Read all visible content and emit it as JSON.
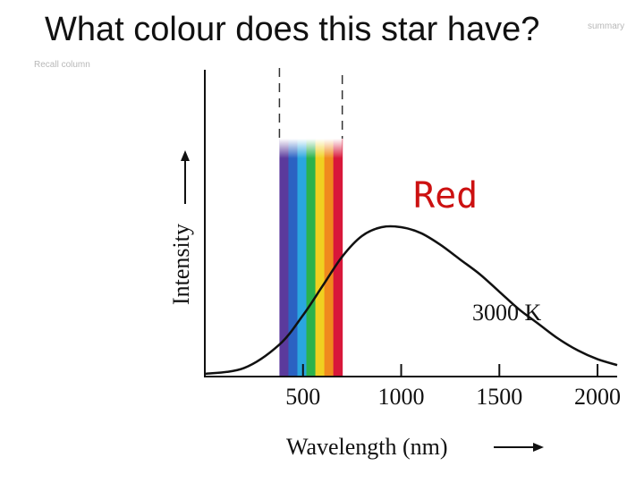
{
  "slide": {
    "title": "What colour does this star have?",
    "summary_link": "summary",
    "recall_link": "Recall column",
    "answer": "Red"
  },
  "colors": {
    "answer": "#cc1111",
    "curve": "#111111",
    "visible_band": [
      "#5b3a9c",
      "#2b62c2",
      "#2aa6df",
      "#2bb24c",
      "#f0d020",
      "#f08a1d",
      "#d8173a"
    ]
  },
  "chart_data": {
    "type": "line",
    "title": "",
    "xlabel": "Wavelength (nm)",
    "ylabel": "Intensity",
    "xlim": [
      0,
      2100
    ],
    "ylim": [
      0,
      1
    ],
    "x_ticks": [
      500,
      1000,
      1500,
      2000
    ],
    "y_ticks": [],
    "grid": false,
    "series": [
      {
        "name": "3000 K",
        "x": [
          0,
          200,
          380,
          500,
          600,
          700,
          800,
          900,
          1000,
          1100,
          1200,
          1300,
          1400,
          1500,
          1600,
          1700,
          1800,
          1900,
          2000,
          2100
        ],
        "y": [
          0.0,
          0.02,
          0.1,
          0.2,
          0.3,
          0.4,
          0.47,
          0.5,
          0.5,
          0.48,
          0.44,
          0.39,
          0.34,
          0.28,
          0.22,
          0.17,
          0.12,
          0.08,
          0.05,
          0.03
        ]
      }
    ],
    "visible_range_nm": [
      380,
      700
    ]
  }
}
